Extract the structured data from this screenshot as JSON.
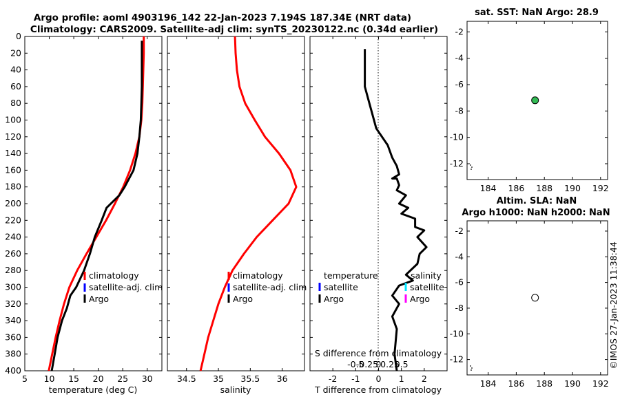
{
  "titles": {
    "line1": "Argo profile: aoml 4903196_142 22-Jan-2023 7.194S 187.34E (NRT data)",
    "line2": "Climatology: CARS2009. Satellite-adj clim: synTS_20230122.nc (0.34d earlier)"
  },
  "panels": {
    "temperature": {
      "xlabel": "temperature (deg C)",
      "xticks": [
        "5",
        "10",
        "15",
        "20",
        "25",
        "30"
      ],
      "legend": [
        "climatology",
        "satellite-adj. clim",
        "Argo"
      ]
    },
    "salinity": {
      "xlabel": "salinity",
      "xticks": [
        "34.5",
        "35",
        "35.5",
        "36"
      ],
      "legend": [
        "climatology",
        "satellite-adj. clim",
        "Argo"
      ]
    },
    "difference": {
      "xlabel": "T difference from climatology",
      "xticks": [
        "-2",
        "-1",
        "0",
        "1",
        "2"
      ],
      "s_axis_label": "S difference from climatology",
      "s_ticks": [
        "-0.5",
        "-0.25",
        "0",
        "0.25",
        "0.5"
      ],
      "legend_left_title": "temperature",
      "legend_left": [
        "satellite",
        "Argo"
      ],
      "legend_right_title": "salinity",
      "legend_right": [
        "satellite",
        "Argo"
      ]
    },
    "sst_map": {
      "title": "sat. SST: NaN Argo: 28.9",
      "xticks": [
        "184",
        "186",
        "188",
        "190",
        "192"
      ],
      "yticks": [
        "-2",
        "-4",
        "-6",
        "-8",
        "-10",
        "-12"
      ]
    },
    "sla_map": {
      "title1": "Altim. SLA: NaN",
      "title2": "Argo h1000: NaN h2000: NaN",
      "xticks": [
        "184",
        "186",
        "188",
        "190",
        "192"
      ],
      "yticks": [
        "-2",
        "-4",
        "-6",
        "-8",
        "-10",
        "-12"
      ]
    }
  },
  "depth_ticks": [
    "0",
    "20",
    "40",
    "60",
    "80",
    "100",
    "120",
    "140",
    "160",
    "180",
    "200",
    "220",
    "240",
    "260",
    "280",
    "300",
    "320",
    "340",
    "360",
    "380",
    "400"
  ],
  "watermark": "©IMOS 27-Jan-2023 11:38:44",
  "colors": {
    "climatology": "#ff0000",
    "satellite": "#0000ff",
    "argo": "#000000",
    "sal_satellite": "#00e5ff",
    "sal_argo": "#ff00ff",
    "argo_marker": "#33bb55"
  },
  "chart_data": [
    {
      "type": "line",
      "xlabel": "temperature (deg C)",
      "ylabel": "",
      "xlim": [
        5,
        33
      ],
      "ylim": [
        400,
        0
      ],
      "series": [
        {
          "name": "climatology",
          "x": [
            29.3,
            29.3,
            29.2,
            29.1,
            29.0,
            28.8,
            28.4,
            27.6,
            26.5,
            25.1,
            23.4,
            21.6,
            19.6,
            17.6,
            15.7,
            14.1,
            13.0,
            12.1,
            11.3,
            10.6,
            9.9
          ],
          "y": [
            0,
            20,
            40,
            60,
            80,
            100,
            120,
            140,
            160,
            180,
            200,
            220,
            240,
            260,
            280,
            300,
            320,
            340,
            360,
            380,
            400
          ]
        },
        {
          "name": "Argo",
          "x": [
            28.9,
            28.9,
            28.9,
            28.9,
            28.8,
            28.7,
            28.4,
            28.0,
            27.2,
            25.4,
            24.3,
            21.7,
            20.7,
            19.3,
            18.3,
            17.1,
            15.5,
            14.3,
            13.6,
            12.6,
            11.7,
            11.1,
            10.5
          ],
          "y": [
            5,
            20,
            40,
            60,
            80,
            100,
            120,
            140,
            160,
            180,
            190,
            205,
            220,
            240,
            260,
            280,
            300,
            310,
            325,
            340,
            360,
            380,
            400
          ]
        }
      ]
    },
    {
      "type": "line",
      "xlabel": "salinity",
      "ylabel": "",
      "xlim": [
        34.2,
        36.35
      ],
      "ylim": [
        400,
        0
      ],
      "series": [
        {
          "name": "climatology",
          "x": [
            35.26,
            35.27,
            35.29,
            35.33,
            35.42,
            35.57,
            35.73,
            35.95,
            36.13,
            36.22,
            36.1,
            35.85,
            35.6,
            35.4,
            35.22,
            35.1,
            35.0,
            34.92,
            34.84,
            34.78,
            34.72
          ],
          "y": [
            0,
            20,
            40,
            60,
            80,
            100,
            120,
            140,
            160,
            180,
            200,
            220,
            240,
            260,
            280,
            300,
            320,
            340,
            360,
            380,
            400
          ]
        }
      ]
    },
    {
      "type": "line",
      "xlabel": "T difference from climatology",
      "ylabel": "",
      "xlim": [
        -3,
        3
      ],
      "ylim": [
        400,
        0
      ],
      "series": [
        {
          "name": "Argo",
          "x": [
            -0.6,
            -0.6,
            -0.6,
            -0.4,
            -0.1,
            0.4,
            0.6,
            0.8,
            0.9,
            0.6,
            0.8,
            0.9,
            0.8,
            1.2,
            0.9,
            1.3,
            1.0,
            1.6,
            1.6,
            2.0,
            1.7,
            2.1,
            1.8,
            1.7,
            1.2,
            1.5,
            0.9,
            0.6,
            0.9,
            0.6,
            0.8,
            0.7,
            0.8
          ],
          "y": [
            15,
            40,
            60,
            80,
            110,
            130,
            145,
            155,
            165,
            170,
            170,
            178,
            184,
            190,
            200,
            205,
            212,
            218,
            228,
            232,
            240,
            252,
            260,
            272,
            285,
            292,
            298,
            310,
            320,
            335,
            350,
            380,
            400
          ]
        }
      ]
    },
    {
      "type": "scatter",
      "title": "sat. SST: NaN Argo: 28.9",
      "xlim": [
        182.5,
        192.5
      ],
      "ylim": [
        -13.2,
        -1.2
      ],
      "series": [
        {
          "name": "Argo",
          "x": [
            187.34
          ],
          "y": [
            -7.19
          ]
        }
      ]
    },
    {
      "type": "scatter",
      "title": "Altim. SLA: NaN",
      "xlim": [
        182.5,
        192.5
      ],
      "ylim": [
        -13.2,
        -1.2
      ],
      "series": [
        {
          "name": "Argo",
          "x": [
            187.34
          ],
          "y": [
            -7.19
          ]
        }
      ]
    }
  ]
}
